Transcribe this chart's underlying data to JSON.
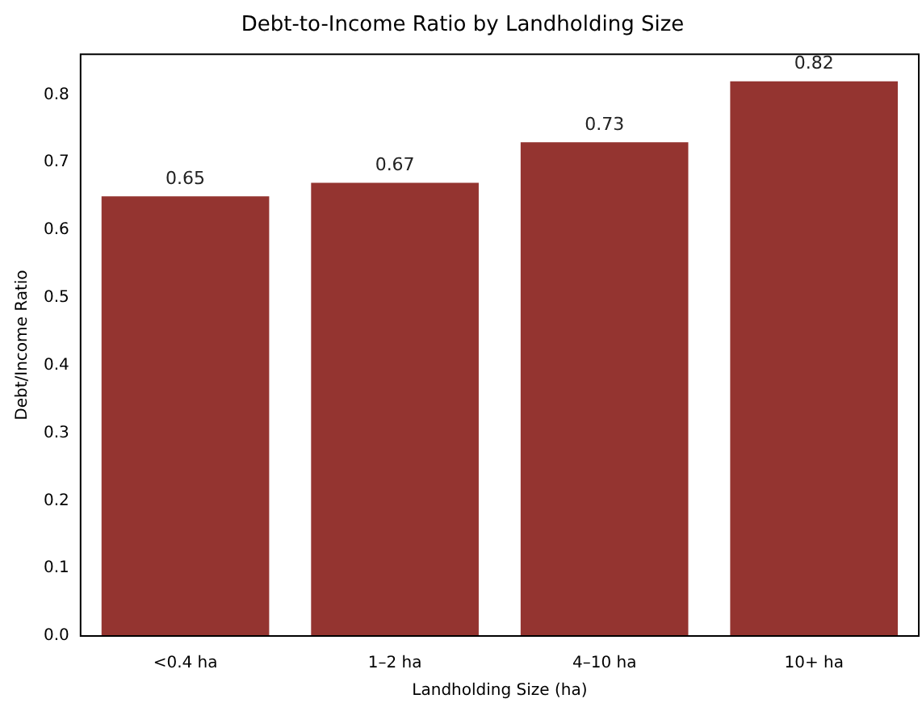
{
  "chart_data": {
    "type": "bar",
    "title": "Debt-to-Income Ratio by Landholding Size",
    "xlabel": "Landholding Size (ha)",
    "ylabel": "Debt/Income Ratio",
    "categories": [
      "<0.4 ha",
      "1–2 ha",
      "4–10 ha",
      "10+ ha"
    ],
    "values": [
      0.65,
      0.67,
      0.73,
      0.82
    ],
    "color": "#943430",
    "ylim": [
      0,
      0.86
    ],
    "yticks": [
      {
        "value": 0,
        "label": "0.0"
      },
      0.1,
      0.2,
      0.3,
      0.4,
      0.5,
      0.6,
      0.7,
      0.8
    ],
    "grid": false,
    "legend": false,
    "data_labels": true
  }
}
